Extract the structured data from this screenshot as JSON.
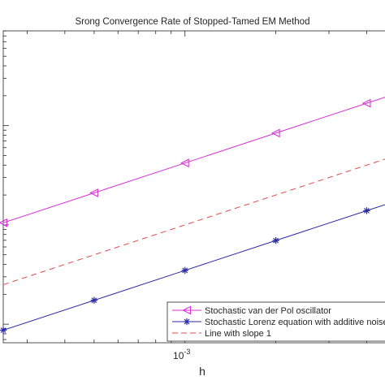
{
  "chart_data": {
    "type": "line",
    "title": "Srong Convergence Rate of Stopped-Tamed EM Method",
    "xlabel": "h",
    "ylabel": "",
    "xscale": "log",
    "yscale": "log",
    "xlim": [
      0.00025,
      0.0046
    ],
    "ylim": [
      6.5e-05,
      0.09
    ],
    "x_tick_labels": [
      {
        "value": 0.001,
        "base": "10",
        "exp": "-3"
      }
    ],
    "grid": false,
    "legend_position": "bottom-right",
    "series": [
      {
        "name": "Stochastic van der Pol oscillator",
        "color": "#d633d6",
        "marker": "triangle-left",
        "line": "solid",
        "x": [
          0.00025,
          0.0005,
          0.001,
          0.002,
          0.004
        ],
        "y": [
          0.00105,
          0.0021,
          0.0042,
          0.0084,
          0.0168
        ],
        "extends_to_x": 0.0046
      },
      {
        "name": "Stochastic Lorenz equation with additive noise",
        "color": "#2a2aa8",
        "marker": "asterisk",
        "line": "solid",
        "x": [
          0.00025,
          0.0005,
          0.001,
          0.002,
          0.004
        ],
        "y": [
          8.7e-05,
          0.000174,
          0.000348,
          0.000696,
          0.00139
        ],
        "extends_to_x": 0.0046
      },
      {
        "name": "Line with slope 1",
        "color": "#e04a4a",
        "marker": "none",
        "line": "dashed",
        "x": [
          0.00025,
          0.0046
        ],
        "y": [
          0.00025,
          0.0046
        ]
      }
    ]
  }
}
